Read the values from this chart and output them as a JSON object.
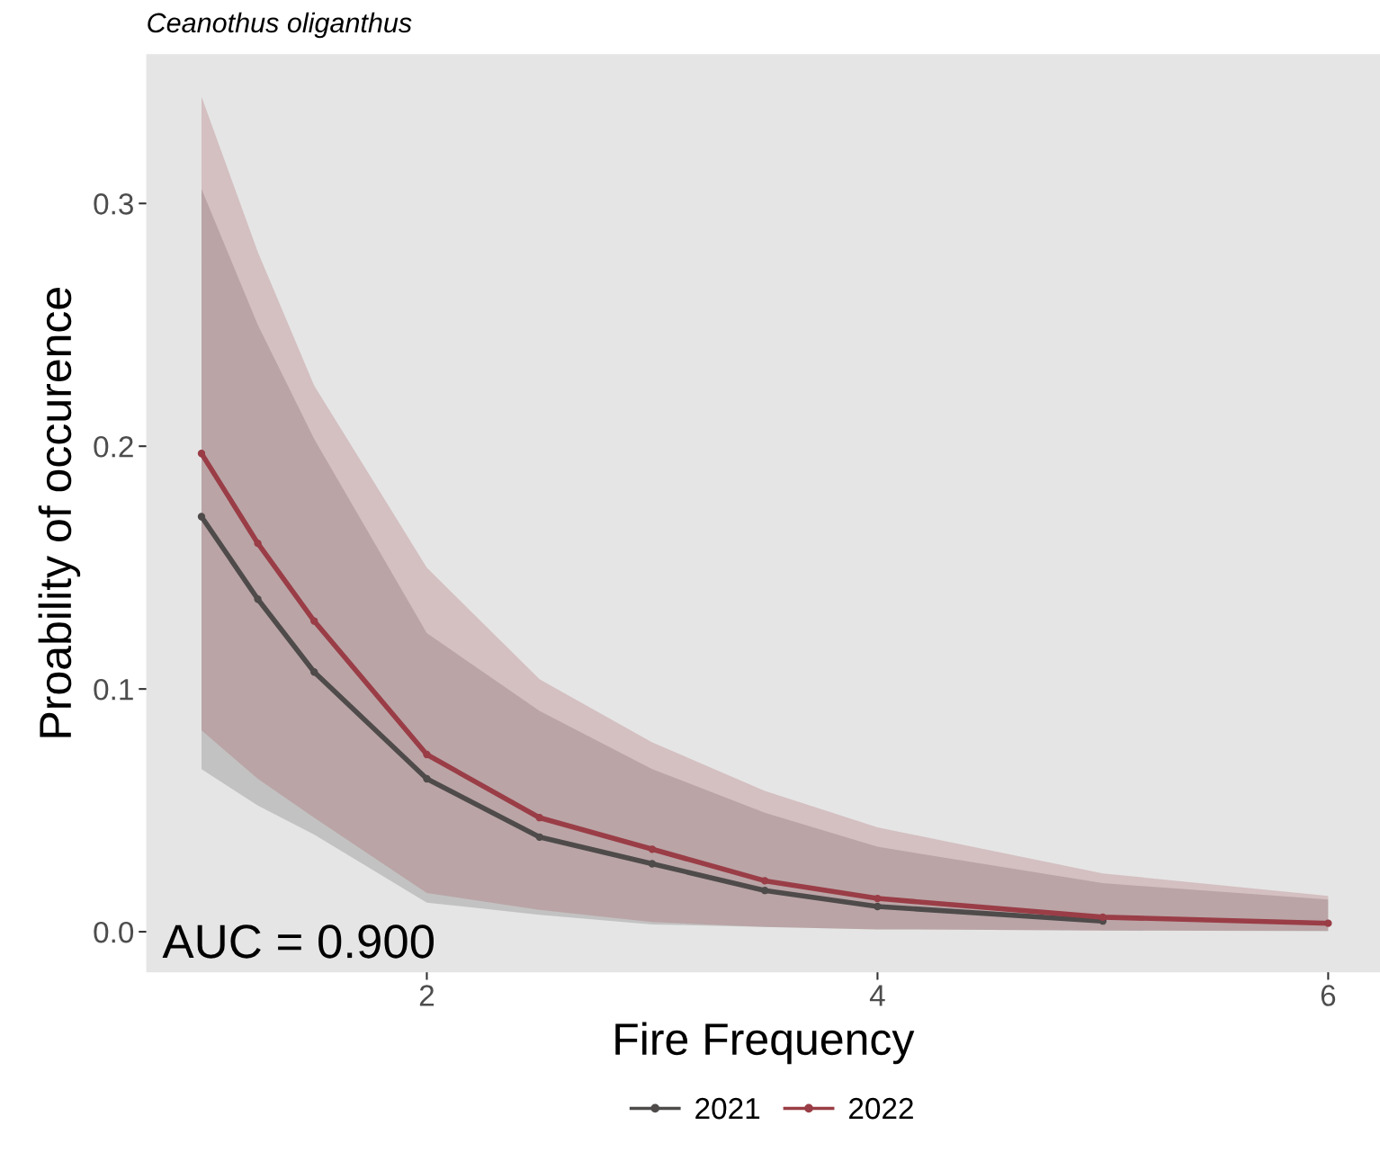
{
  "chart_data": {
    "type": "line",
    "title": "Ceanothus oliganthus",
    "xlabel": "Fire Frequency",
    "ylabel": "Proability of occurence",
    "annotations": [
      "AUC = 0.900"
    ],
    "xlim": [
      0.755,
      6.23
    ],
    "xticks": [
      2,
      4,
      6
    ],
    "ylim": [
      -0.0167,
      0.3615
    ],
    "yticks": [
      {
        "value": 0,
        "label": "0.0"
      },
      {
        "value": 0.1,
        "label": "0.1"
      },
      {
        "value": 0.2,
        "label": "0.2"
      },
      {
        "value": 0.3,
        "label": "0.3"
      }
    ],
    "grid": false,
    "legend": "bottom",
    "marker": "circle",
    "line_style": "solid",
    "series": [
      {
        "name": "2021",
        "color": "#4f4b4b",
        "x": [
          1,
          1.25,
          1.5,
          2,
          2.5,
          3,
          3.5,
          4,
          5,
          6
        ],
        "values": [
          0.171,
          0.137,
          0.107,
          0.063,
          0.039,
          0.028,
          0.017,
          0.0104,
          0.0044,
          null
        ],
        "lower": [
          0.067,
          0.052,
          0.04,
          0.012,
          0.007,
          0.003,
          0.002,
          0.001,
          0.0005,
          0.0002
        ],
        "upper": [
          0.306,
          0.25,
          0.203,
          0.123,
          0.091,
          0.067,
          0.049,
          0.035,
          0.02,
          0.0133
        ]
      },
      {
        "name": "2022",
        "color": "#9a3d46",
        "x": [
          1,
          1.25,
          1.5,
          2,
          2.5,
          3,
          3.5,
          4,
          5,
          6
        ],
        "values": [
          0.197,
          0.16,
          0.128,
          0.073,
          0.047,
          0.034,
          0.021,
          0.0137,
          0.006,
          0.0035
        ],
        "lower": [
          0.083,
          0.063,
          0.047,
          0.016,
          0.009,
          0.004,
          0.002,
          0.001,
          0.0005,
          0.0004
        ],
        "upper": [
          0.344,
          0.28,
          0.225,
          0.15,
          0.104,
          0.078,
          0.058,
          0.043,
          0.024,
          0.0148
        ]
      }
    ]
  }
}
